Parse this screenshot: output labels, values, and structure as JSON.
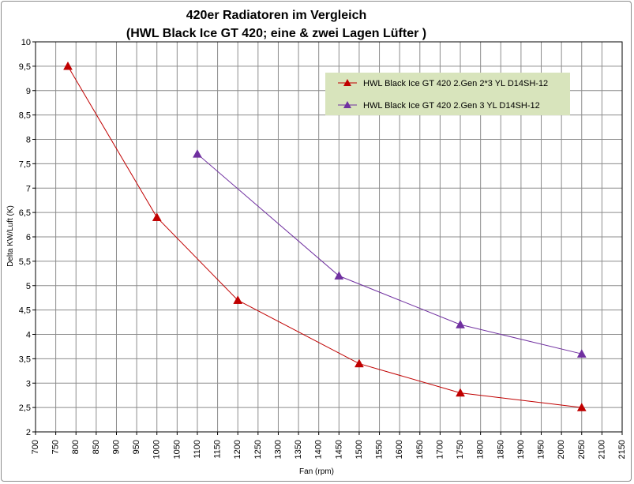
{
  "chart_data": {
    "type": "line",
    "title": "420er Radiatoren im Vergleich",
    "subtitle": "(HWL Black Ice GT 420; eine & zwei Lagen Lüfter )",
    "xlabel": "Fan (rpm)",
    "ylabel": "Delta KW/Luft (K)",
    "xlim": [
      700,
      2150
    ],
    "ylim": [
      2,
      10
    ],
    "x_ticks": [
      700,
      750,
      800,
      850,
      900,
      950,
      1000,
      1050,
      1100,
      1150,
      1200,
      1250,
      1300,
      1350,
      1400,
      1450,
      1500,
      1550,
      1600,
      1650,
      1700,
      1750,
      1800,
      1850,
      1900,
      1950,
      2000,
      2050,
      2100,
      2150
    ],
    "y_ticks": [
      "2",
      "2,5",
      "3",
      "3,5",
      "4",
      "4,5",
      "5",
      "5,5",
      "6",
      "6,5",
      "7",
      "7,5",
      "8",
      "8,5",
      "9",
      "9,5",
      "10"
    ],
    "grid": true,
    "legend_position": "top-right",
    "legend_background": "#d8e4bc",
    "series": [
      {
        "name": "HWL Black Ice GT 420 2.Gen 2*3 YL D14SH-12",
        "color": "#c00000",
        "marker": "triangle",
        "x": [
          780,
          1000,
          1200,
          1500,
          1750,
          2050
        ],
        "y": [
          9.5,
          6.4,
          4.7,
          3.4,
          2.8,
          2.5
        ]
      },
      {
        "name": "HWL Black Ice GT 420 2.Gen 3 YL D14SH-12",
        "color": "#7030a0",
        "marker": "triangle",
        "x": [
          1100,
          1450,
          1750,
          2050
        ],
        "y": [
          7.7,
          5.2,
          4.2,
          3.6
        ]
      }
    ]
  }
}
